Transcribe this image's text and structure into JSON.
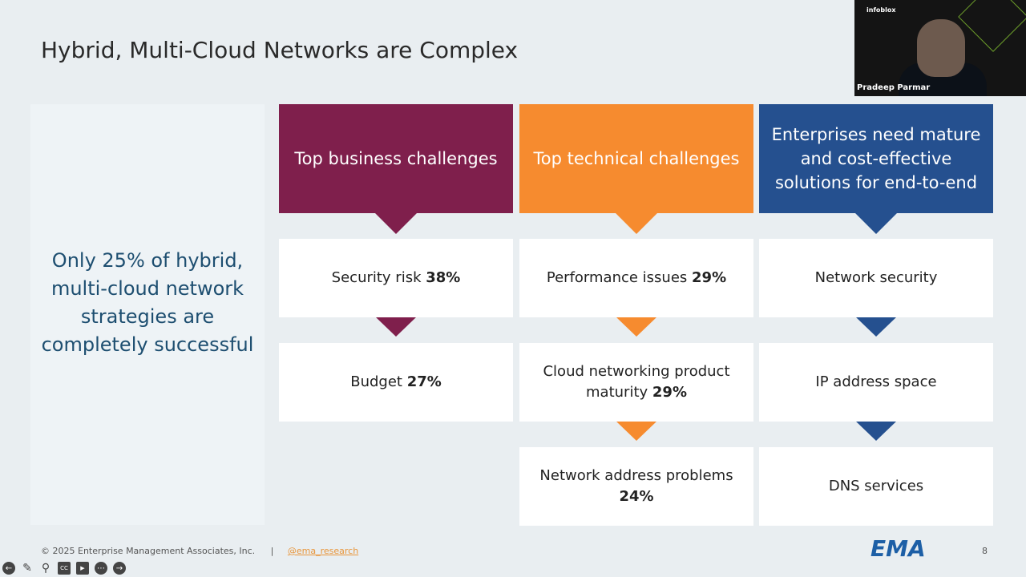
{
  "title": "Hybrid, Multi-Cloud Networks are Complex",
  "left_panel": "Only 25% of hybrid, multi-cloud network strategies are completely successful",
  "columns": [
    {
      "header": "Top business challenges",
      "color": "#7f1f4c",
      "items": [
        {
          "label": "Security risk ",
          "value": "38%"
        },
        {
          "label": "Budget ",
          "value": "27%"
        }
      ]
    },
    {
      "header": "Top technical challenges",
      "color": "#f68b2f",
      "items": [
        {
          "label": "Performance issues ",
          "value": "29%"
        },
        {
          "label": "Cloud networking product maturity ",
          "value": "29%"
        },
        {
          "label": "Network address problems ",
          "value": "24%"
        }
      ]
    },
    {
      "header": "Enterprises need mature and cost-effective solutions for end-to-end",
      "color": "#25508f",
      "items": [
        {
          "label": "Network security",
          "value": ""
        },
        {
          "label": "IP address space",
          "value": ""
        },
        {
          "label": "DNS services",
          "value": ""
        }
      ]
    }
  ],
  "footer": {
    "copyright": "© 2025 Enterprise Management Associates, Inc.",
    "separator": "|",
    "handle": "@ema_research",
    "logo": "EMA",
    "page": "8"
  },
  "video": {
    "brand": "infoblox",
    "name": "Pradeep Parmar"
  },
  "toolbar": {
    "icons": [
      "arrow-left-icon",
      "pen-icon",
      "search-icon",
      "cc-icon",
      "video-off-icon",
      "more-icon",
      "arrow-right-icon"
    ],
    "cc": "CC"
  }
}
